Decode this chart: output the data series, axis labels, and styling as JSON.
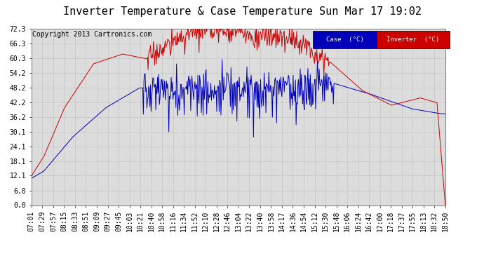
{
  "title": "Inverter Temperature & Case Temperature Sun Mar 17 19:02",
  "copyright": "Copyright 2013 Cartronics.com",
  "yticks": [
    0.0,
    6.0,
    12.1,
    18.1,
    24.1,
    30.1,
    36.2,
    42.2,
    48.2,
    54.2,
    60.3,
    66.3,
    72.3
  ],
  "ylim": [
    0.0,
    72.3
  ],
  "xtick_labels": [
    "07:01",
    "07:29",
    "07:57",
    "08:15",
    "08:33",
    "08:51",
    "09:09",
    "09:27",
    "09:45",
    "10:03",
    "10:21",
    "10:40",
    "10:58",
    "11:16",
    "11:34",
    "11:52",
    "12:10",
    "12:28",
    "12:46",
    "13:04",
    "13:22",
    "13:40",
    "13:58",
    "14:17",
    "14:36",
    "14:54",
    "15:12",
    "15:30",
    "15:48",
    "16:06",
    "16:24",
    "16:42",
    "17:00",
    "17:18",
    "17:37",
    "17:55",
    "18:13",
    "18:32",
    "18:50"
  ],
  "case_color": "#0000bb",
  "inverter_color": "#cc0000",
  "background_color": "#ffffff",
  "plot_bg_color": "#dcdcdc",
  "grid_color": "#aaaaaa",
  "legend_case_bg": "#0000bb",
  "legend_inv_bg": "#cc0000",
  "legend_text_color": "#ffffff",
  "title_fontsize": 11,
  "copyright_fontsize": 7,
  "tick_fontsize": 7
}
